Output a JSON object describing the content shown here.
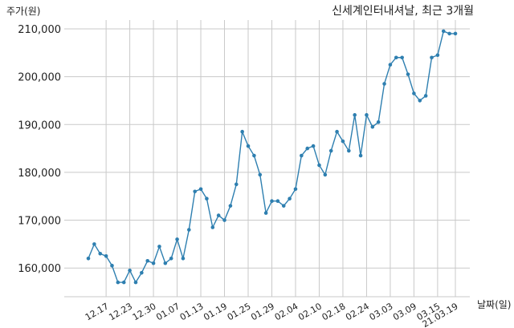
{
  "chart_data": {
    "type": "line",
    "title": "신세계인터내셔날, 최근 3개월",
    "ylabel": "주가(원)",
    "xlabel": "날짜(일)",
    "ylim": [
      154000,
      211500
    ],
    "yticks": [
      160000,
      170000,
      180000,
      190000,
      200000,
      210000
    ],
    "ytick_labels": [
      "160,000",
      "170,000",
      "180,000",
      "190,000",
      "200,000",
      "210,000"
    ],
    "xtick_labels": [
      "12.17",
      "12.23",
      "12.30",
      "01.07",
      "01.13",
      "01.19",
      "01.25",
      "01.29",
      "02.04",
      "02.10",
      "02.18",
      "02.24",
      "03.03",
      "03.09",
      "03.15",
      "21.03.19"
    ],
    "xtick_indices": [
      3,
      7,
      11,
      15,
      19,
      23,
      27,
      31,
      35,
      39,
      43,
      47,
      51,
      55,
      59,
      62
    ],
    "grid": true,
    "series": [
      {
        "color": "#2e7fb0",
        "values": [
          162000,
          165000,
          163000,
          162500,
          160500,
          157000,
          157000,
          159500,
          157000,
          159000,
          161500,
          161000,
          164500,
          161000,
          162000,
          166000,
          162000,
          168000,
          176000,
          176500,
          174500,
          168500,
          171000,
          170000,
          173000,
          177500,
          188500,
          185500,
          183500,
          179500,
          171500,
          174000,
          174000,
          173000,
          174500,
          176500,
          183500,
          185000,
          185500,
          181500,
          179500,
          184500,
          188500,
          186500,
          184500,
          192000,
          183500,
          192000,
          189500,
          190500,
          198500,
          202500,
          204000,
          204000,
          200500,
          196500,
          195000,
          196000,
          204000,
          204500,
          209500,
          209000,
          209000
        ]
      }
    ]
  }
}
